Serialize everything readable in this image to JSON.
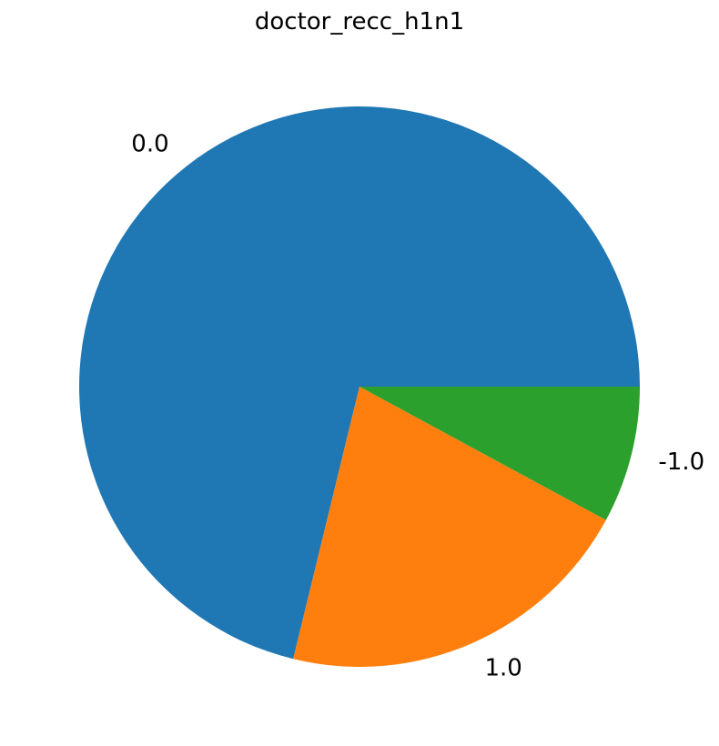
{
  "chart_data": {
    "type": "pie",
    "title": "doctor_recc_h1n1",
    "slices": [
      {
        "label": "0.0",
        "value": 71.2,
        "color": "#1f77b4"
      },
      {
        "label": "1.0",
        "value": 20.9,
        "color": "#ff7f0e"
      },
      {
        "label": "-1.0",
        "value": 7.9,
        "color": "#2ca02c"
      }
    ],
    "start_angle": 0,
    "direction": "counterclockwise",
    "legend": "none"
  }
}
